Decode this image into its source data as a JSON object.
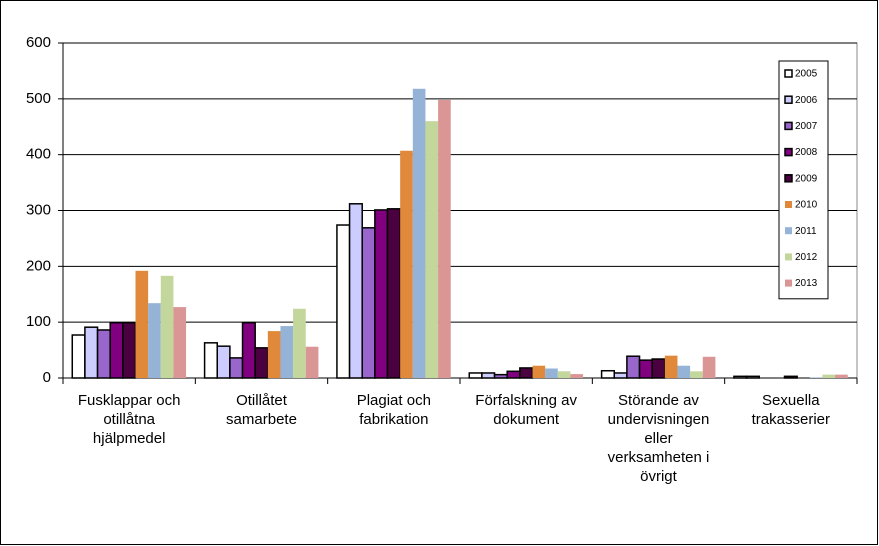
{
  "chart_data": {
    "type": "bar",
    "categories": [
      "Fusklappar och otillåtna hjälpmedel",
      "Otillåtet samarbete",
      "Plagiat och fabrikation",
      "Förfalskning av dokument",
      "Störande av undervisningen eller verksamheten i övrigt",
      "Sexuella trakasserier"
    ],
    "series": [
      {
        "name": "2005",
        "color": "#ffffff",
        "edgecolor": "#000000",
        "values": [
          77,
          63,
          274,
          9,
          13,
          3
        ]
      },
      {
        "name": "2006",
        "color": "#ccccff",
        "edgecolor": "#000000",
        "values": [
          91,
          57,
          312,
          9,
          9,
          3
        ]
      },
      {
        "name": "2007",
        "color": "#9966cc",
        "edgecolor": "#000000",
        "values": [
          86,
          36,
          269,
          6,
          39,
          0
        ]
      },
      {
        "name": "2008",
        "color": "#800080",
        "edgecolor": "#000000",
        "values": [
          99,
          99,
          301,
          12,
          32,
          0
        ]
      },
      {
        "name": "2009",
        "color": "#4b0040",
        "edgecolor": "#000000",
        "values": [
          99,
          54,
          303,
          18,
          34,
          3
        ]
      },
      {
        "name": "2010",
        "color": "#e0893a",
        "values": [
          192,
          84,
          407,
          22,
          40,
          0
        ]
      },
      {
        "name": "2011",
        "color": "#95b3d7",
        "values": [
          134,
          93,
          518,
          17,
          22,
          1
        ]
      },
      {
        "name": "2012",
        "color": "#c3d69b",
        "values": [
          183,
          124,
          460,
          12,
          12,
          6
        ]
      },
      {
        "name": "2013",
        "color": "#d99694",
        "values": [
          127,
          56,
          498,
          7,
          38,
          6
        ]
      }
    ],
    "ylim": [
      0,
      600
    ],
    "yticks": [
      0,
      100,
      200,
      300,
      400,
      500,
      600
    ],
    "grid": true,
    "legend": "upper right"
  }
}
